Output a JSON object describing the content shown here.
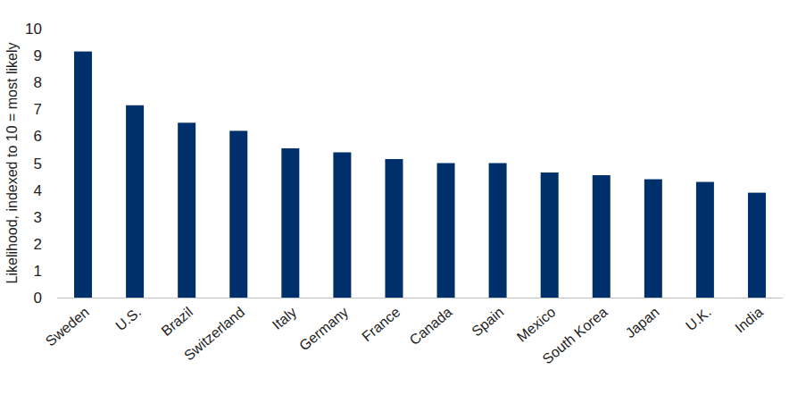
{
  "chart_data": {
    "type": "bar",
    "y_label": "Likelihood, indexed to 10 = most likely",
    "categories": [
      "Sweden",
      "U.S.",
      "Brazil",
      "Switzerland",
      "Italy",
      "Germany",
      "France",
      "Canada",
      "Spain",
      "Mexico",
      "South Korea",
      "Japan",
      "U.K.",
      "India"
    ],
    "values": [
      9.15,
      7.15,
      6.5,
      6.2,
      5.55,
      5.4,
      5.15,
      5.0,
      5.0,
      4.65,
      4.55,
      4.4,
      4.3,
      3.9
    ],
    "color": "#00306b",
    "ylim": [
      0,
      10
    ],
    "yticks": [
      0,
      1,
      2,
      3,
      4,
      5,
      6,
      7,
      8,
      9,
      10
    ],
    "grid": false
  }
}
